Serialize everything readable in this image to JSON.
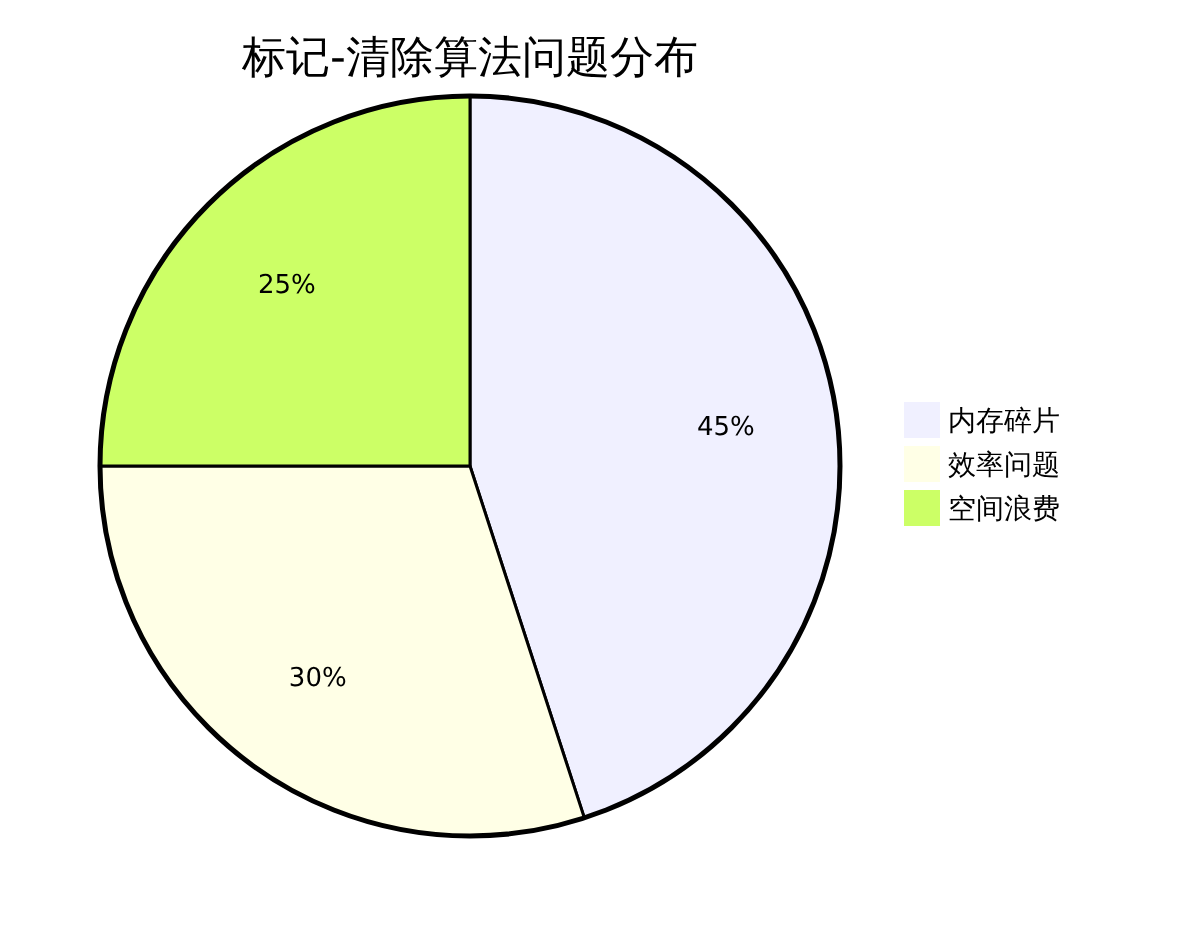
{
  "chart_data": {
    "type": "pie",
    "title": "标记-清除算法问题分布",
    "categories": [
      "内存碎片",
      "效率问题",
      "空间浪费"
    ],
    "values": [
      45,
      30,
      25
    ],
    "colors": [
      "#f0f0ff",
      "#ffffe6",
      "#ccff66"
    ],
    "value_labels": [
      "45%",
      "30%",
      "25%"
    ],
    "legend": "right"
  }
}
